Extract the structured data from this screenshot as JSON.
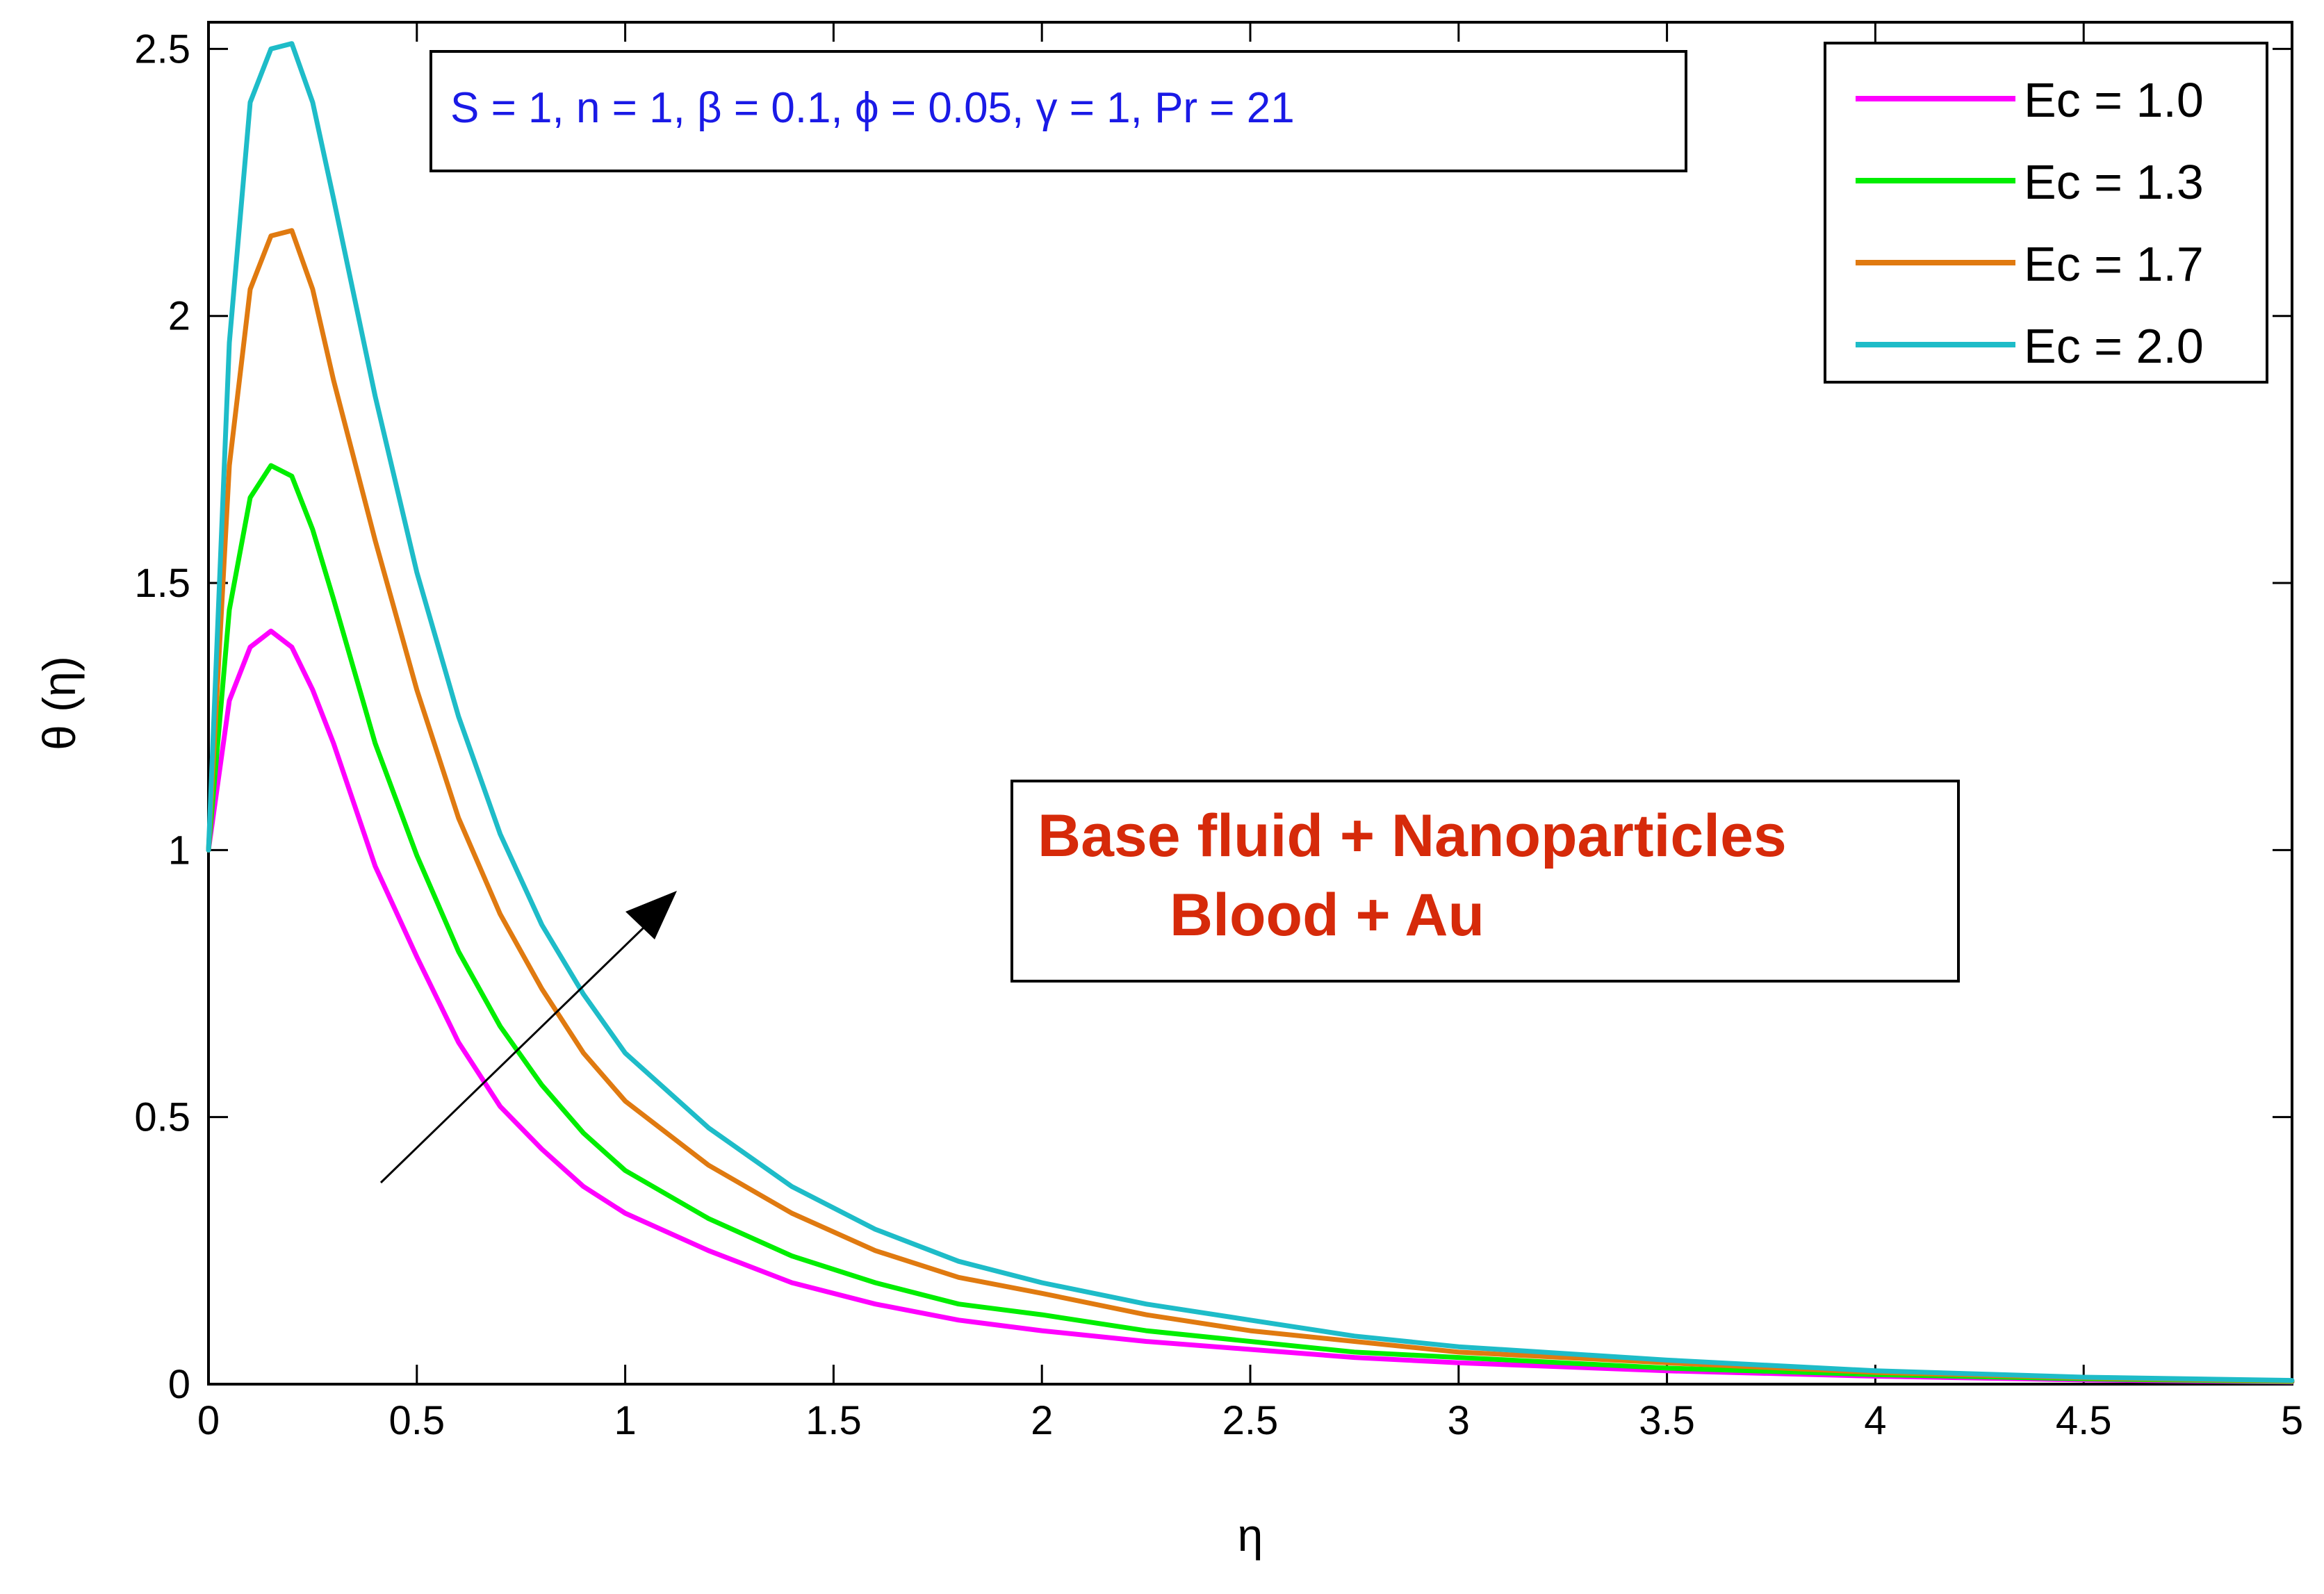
{
  "chart_data": {
    "type": "line",
    "xlabel": "η",
    "ylabel": "θ (η)",
    "xlim": [
      0,
      5
    ],
    "ylim": [
      0,
      2.55
    ],
    "x_ticks": [
      "0",
      "0.5",
      "1",
      "1.5",
      "2",
      "2.5",
      "3",
      "3.5",
      "4",
      "4.5",
      "5"
    ],
    "y_ticks": [
      "0",
      "0.5",
      "1",
      "1.5",
      "2",
      "2.5"
    ],
    "grid": false,
    "legend_position": "top-right",
    "parameters_text": "S = 1, n = 1, β = 0.1, ϕ = 0.05, γ = 1, Pr = 21",
    "annotation": {
      "line1": "Base fluid + Nanoparticles",
      "line2": "Blood + Au",
      "arrow_direction": "increasing Ec"
    },
    "x": [
      0,
      0.05,
      0.1,
      0.15,
      0.2,
      0.25,
      0.3,
      0.4,
      0.5,
      0.6,
      0.7,
      0.8,
      0.9,
      1.0,
      1.2,
      1.4,
      1.6,
      1.8,
      2.0,
      2.25,
      2.5,
      2.75,
      3.0,
      3.5,
      4.0,
      4.5,
      5.0
    ],
    "series": [
      {
        "name": "Ec = 1.0",
        "color": "#ff00ff",
        "values": [
          1.0,
          1.28,
          1.38,
          1.41,
          1.38,
          1.3,
          1.2,
          0.97,
          0.8,
          0.64,
          0.52,
          0.44,
          0.37,
          0.32,
          0.25,
          0.19,
          0.15,
          0.12,
          0.1,
          0.08,
          0.065,
          0.05,
          0.04,
          0.025,
          0.015,
          0.008,
          0.004
        ]
      },
      {
        "name": "Ec = 1.3",
        "color": "#00ee00",
        "values": [
          1.0,
          1.45,
          1.66,
          1.72,
          1.7,
          1.6,
          1.47,
          1.2,
          0.99,
          0.81,
          0.67,
          0.56,
          0.47,
          0.4,
          0.31,
          0.24,
          0.19,
          0.15,
          0.13,
          0.1,
          0.08,
          0.06,
          0.05,
          0.03,
          0.018,
          0.01,
          0.005
        ]
      },
      {
        "name": "Ec = 1.7",
        "color": "#e07a10",
        "values": [
          1.0,
          1.72,
          2.05,
          2.15,
          2.16,
          2.05,
          1.88,
          1.58,
          1.3,
          1.06,
          0.88,
          0.74,
          0.62,
          0.53,
          0.41,
          0.32,
          0.25,
          0.2,
          0.17,
          0.13,
          0.1,
          0.08,
          0.06,
          0.04,
          0.022,
          0.012,
          0.006
        ]
      },
      {
        "name": "Ec = 2.0",
        "color": "#1ebcc8",
        "values": [
          1.0,
          1.95,
          2.4,
          2.5,
          2.51,
          2.4,
          2.22,
          1.85,
          1.52,
          1.25,
          1.03,
          0.86,
          0.73,
          0.62,
          0.48,
          0.37,
          0.29,
          0.23,
          0.19,
          0.15,
          0.12,
          0.09,
          0.07,
          0.045,
          0.025,
          0.013,
          0.007
        ]
      }
    ]
  }
}
